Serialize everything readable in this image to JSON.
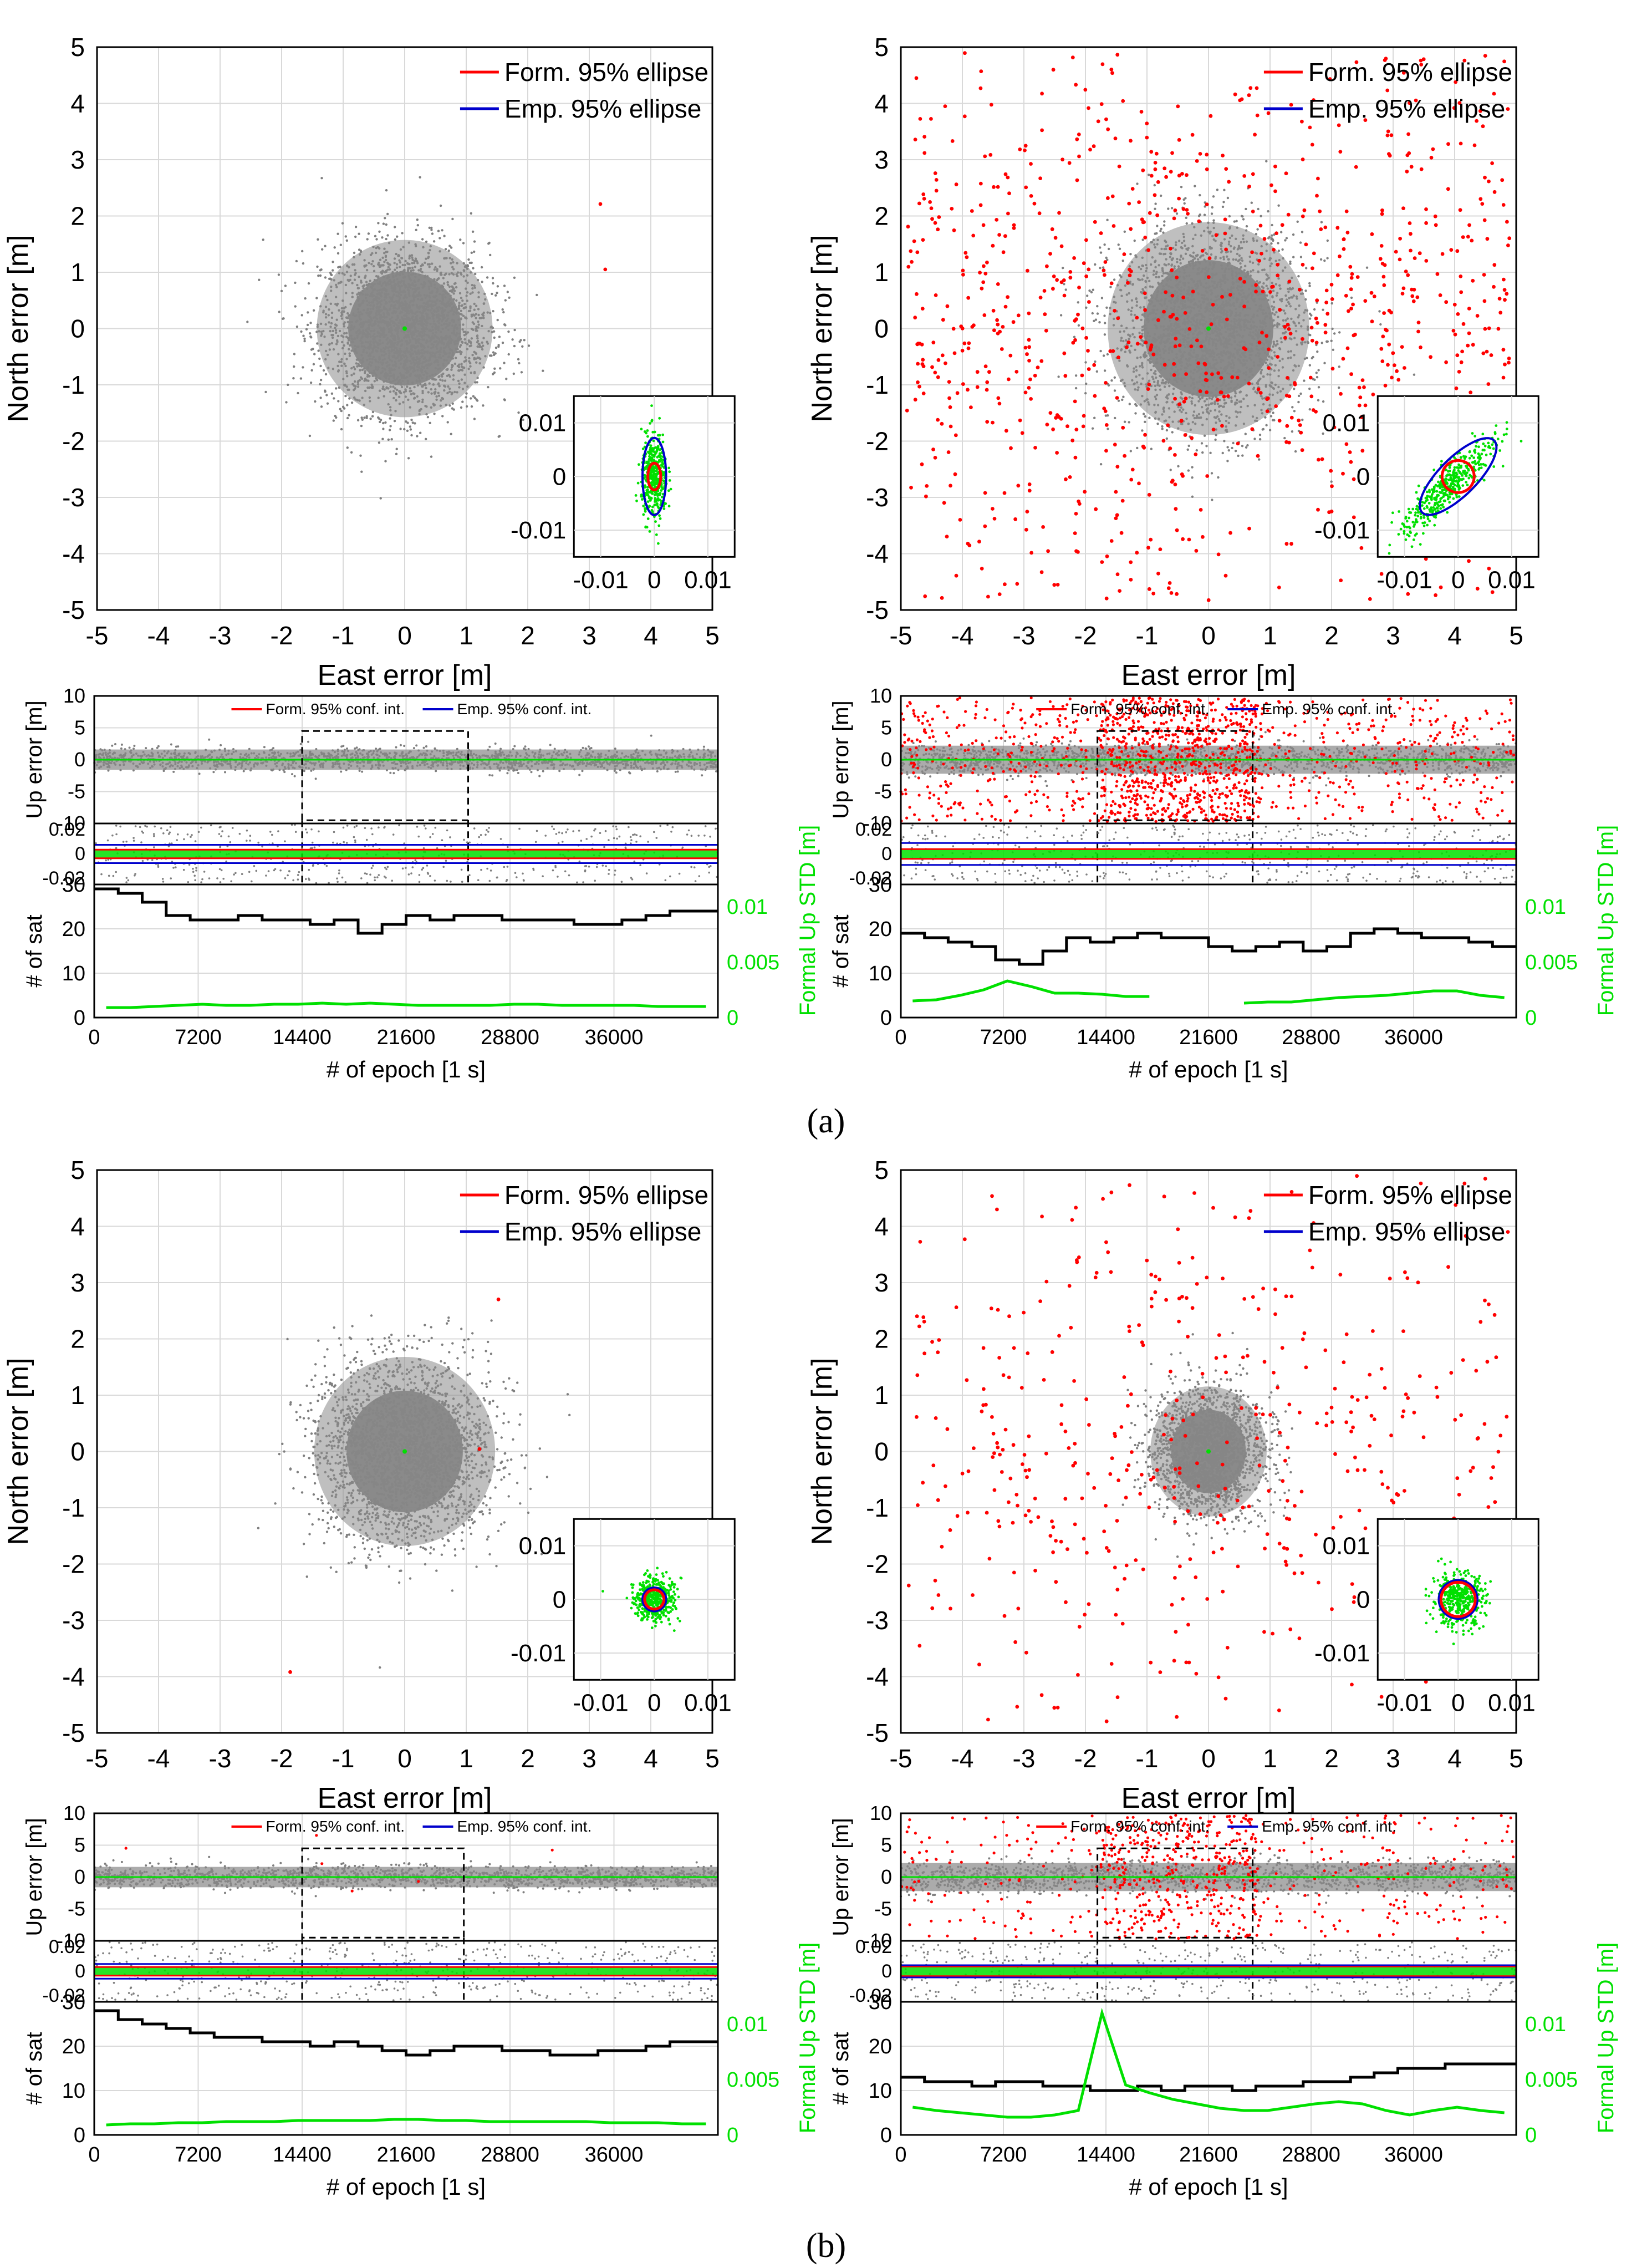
{
  "figure": {
    "caption_a": "(a)",
    "caption_b": "(b)",
    "colors": {
      "scatter_gray": "#7f7f7f",
      "formal": "#ff0000",
      "empirical": "#0000cc",
      "inset_points": "#00e000",
      "sat_line": "#000000",
      "std_line": "#00e000",
      "grid": "#d9d9d9"
    }
  },
  "chart_data": [
    {
      "id": "a_left_horizontal",
      "type": "scatter",
      "title": "",
      "xlabel": "East error [m]",
      "ylabel": "North error [m]",
      "xlim": [
        -5,
        5
      ],
      "ylim": [
        -5,
        5
      ],
      "ticks": [
        "-5",
        "-4",
        "-3",
        "-2",
        "-1",
        "0",
        "1",
        "2",
        "3",
        "4",
        "5"
      ],
      "legend": [
        "Form. 95% ellipse",
        "Emp. 95% ellipse"
      ],
      "cloud": {
        "std_e": 0.68,
        "std_n": 0.75,
        "count": 2600
      },
      "red_outliers": 2,
      "inset": {
        "lim": [
          -0.015,
          0.015
        ],
        "xticks": [
          "-0.01",
          "0",
          "0.01"
        ],
        "yticks": [
          "0.01",
          "0",
          "-0.01"
        ],
        "points_std": [
          0.0012,
          0.004
        ],
        "formal_ellipse": {
          "a": 0.0012,
          "b": 0.0025,
          "angle": 0
        },
        "empirical_ellipse": {
          "a": 0.0022,
          "b": 0.0072,
          "angle": 0
        }
      }
    },
    {
      "id": "a_right_horizontal",
      "type": "scatter",
      "title": "",
      "xlabel": "East error [m]",
      "ylabel": "North error [m]",
      "xlim": [
        -5,
        5
      ],
      "ylim": [
        -5,
        5
      ],
      "ticks": [
        "-5",
        "-4",
        "-3",
        "-2",
        "-1",
        "0",
        "1",
        "2",
        "3",
        "4",
        "5"
      ],
      "legend": [
        "Form. 95% ellipse",
        "Emp. 95% ellipse"
      ],
      "cloud": {
        "std_e": 0.78,
        "std_n": 0.9,
        "count": 2600
      },
      "red_outliers": 900,
      "inset": {
        "lim": [
          -0.015,
          0.015
        ],
        "xticks": [
          "-0.01",
          "0",
          "0.01"
        ],
        "yticks": [
          "0.01",
          "0",
          "-0.01"
        ],
        "points_std": [
          0.004,
          0.004
        ],
        "formal_ellipse": {
          "a": 0.003,
          "b": 0.003,
          "angle": 0
        },
        "empirical_ellipse": {
          "a": 0.0095,
          "b": 0.0035,
          "angle": 45
        }
      }
    },
    {
      "id": "a_left_vertical",
      "type": "line",
      "xlabel": "# of epoch [1 s]",
      "xlim": [
        0,
        43200
      ],
      "xticks": [
        "0",
        "7200",
        "14400",
        "21600",
        "28800",
        "36000"
      ],
      "up": {
        "ylabel": "Up error [m]",
        "ylim": [
          -10,
          10
        ],
        "ticks": [
          "10",
          "5",
          "0",
          "-5",
          "-10"
        ],
        "legend": [
          "Form. 95% conf. int.",
          "Emp. 95% conf. int."
        ],
        "band": 1.6,
        "red_outliers": 0,
        "box_epochs": [
          14400,
          25900
        ]
      },
      "mid": {
        "ylim": [
          -0.025,
          0.025
        ],
        "ticks": [
          "0.02",
          "0",
          "-0.02"
        ],
        "formal": 0.0035,
        "empirical": 0.0075
      },
      "sat": {
        "ylabel_left": "# of sat",
        "ylabel_right": "Formal Up STD [m]",
        "ylim": [
          0,
          30
        ],
        "ticks_left": [
          "30",
          "20",
          "10",
          "0"
        ],
        "ticks_right": [
          "0.01",
          "0.005",
          "0"
        ],
        "right_lim": [
          0,
          0.012
        ],
        "sat_series": [
          29,
          28,
          26,
          23,
          22,
          22,
          23,
          22,
          22,
          21,
          22,
          19,
          21,
          23,
          22,
          23,
          23,
          22,
          22,
          22,
          21,
          21,
          22,
          23,
          24,
          24
        ],
        "std_series": [
          0.0009,
          0.0009,
          0.001,
          0.0011,
          0.0012,
          0.0011,
          0.0011,
          0.0012,
          0.0012,
          0.0013,
          0.0012,
          0.0013,
          0.0012,
          0.0011,
          0.0011,
          0.0011,
          0.0011,
          0.0012,
          0.0012,
          0.0011,
          0.0011,
          0.0011,
          0.0011,
          0.001,
          0.001,
          0.001
        ]
      }
    },
    {
      "id": "a_right_vertical",
      "type": "line",
      "xlabel": "# of epoch [1 s]",
      "xlim": [
        0,
        43200
      ],
      "xticks": [
        "0",
        "7200",
        "14400",
        "21600",
        "28800",
        "36000"
      ],
      "up": {
        "ylabel": "Up error [m]",
        "ylim": [
          -10,
          10
        ],
        "ticks": [
          "10",
          "5",
          "0",
          "-5",
          "-10"
        ],
        "legend": [
          "Form. 95% conf. int.",
          "Emp. 95% conf. int."
        ],
        "band": 2.2,
        "red_outliers": 1400,
        "box_epochs": [
          13800,
          24700
        ]
      },
      "mid": {
        "ylim": [
          -0.025,
          0.025
        ],
        "ticks": [
          "0.02",
          "0",
          "-0.02"
        ],
        "formal": 0.004,
        "empirical": 0.009
      },
      "sat": {
        "ylabel_left": "# of sat",
        "ylabel_right": "Formal Up STD [m]",
        "ylim": [
          0,
          30
        ],
        "ticks_left": [
          "30",
          "20",
          "10",
          "0"
        ],
        "ticks_right": [
          "0.01",
          "0.005",
          "0"
        ],
        "right_lim": [
          0,
          0.012
        ],
        "sat_series": [
          19,
          18,
          17,
          16,
          13,
          12,
          15,
          18,
          17,
          18,
          19,
          18,
          18,
          16,
          15,
          16,
          17,
          15,
          16,
          19,
          20,
          19,
          18,
          18,
          17,
          16
        ],
        "std_series": [
          0.0015,
          0.0016,
          0.002,
          0.0025,
          0.0033,
          0.0028,
          0.0022,
          0.0022,
          0.0021,
          0.0019,
          0.0019,
          null,
          null,
          null,
          0.0013,
          0.0014,
          0.0014,
          0.0016,
          0.0018,
          0.0019,
          0.002,
          0.0022,
          0.0024,
          0.0024,
          0.002,
          0.0018
        ]
      }
    },
    {
      "id": "b_left_horizontal",
      "type": "scatter",
      "title": "",
      "xlabel": "East error [m]",
      "ylabel": "North error [m]",
      "xlim": [
        -5,
        5
      ],
      "ylim": [
        -5,
        5
      ],
      "ticks": [
        "-5",
        "-4",
        "-3",
        "-2",
        "-1",
        "0",
        "1",
        "2",
        "3",
        "4",
        "5"
      ],
      "legend": [
        "Form. 95% ellipse",
        "Emp. 95% ellipse"
      ],
      "cloud": {
        "std_e": 0.7,
        "std_n": 0.8,
        "count": 2600
      },
      "red_outliers": 3,
      "inset": {
        "lim": [
          -0.015,
          0.015
        ],
        "xticks": [
          "-0.01",
          "0",
          "0.01"
        ],
        "yticks": [
          "0.01",
          "0",
          "-0.01"
        ],
        "points_std": [
          0.002,
          0.002
        ],
        "formal_ellipse": {
          "a": 0.0018,
          "b": 0.0018,
          "angle": 0
        },
        "empirical_ellipse": {
          "a": 0.0022,
          "b": 0.0022,
          "angle": 0
        }
      }
    },
    {
      "id": "b_right_horizontal",
      "type": "scatter",
      "title": "",
      "xlabel": "East error [m]",
      "ylabel": "North error [m]",
      "xlim": [
        -5,
        5
      ],
      "ylim": [
        -5,
        5
      ],
      "ticks": [
        "-5",
        "-4",
        "-3",
        "-2",
        "-1",
        "0",
        "1",
        "2",
        "3",
        "4",
        "5"
      ],
      "legend": [
        "Form. 95% ellipse",
        "Emp. 95% ellipse"
      ],
      "cloud": {
        "std_e": 0.45,
        "std_n": 0.55,
        "count": 2000
      },
      "red_outliers": 450,
      "inset": {
        "lim": [
          -0.015,
          0.015
        ],
        "xticks": [
          "-0.01",
          "0",
          "0.01"
        ],
        "yticks": [
          "0.01",
          "0",
          "-0.01"
        ],
        "points_std": [
          0.0025,
          0.0025
        ],
        "formal_ellipse": {
          "a": 0.0032,
          "b": 0.0032,
          "angle": 0
        },
        "empirical_ellipse": {
          "a": 0.0036,
          "b": 0.0036,
          "angle": 0
        }
      }
    },
    {
      "id": "b_left_vertical",
      "type": "line",
      "xlabel": "# of epoch [1 s]",
      "xlim": [
        0,
        43200
      ],
      "xticks": [
        "0",
        "7200",
        "14400",
        "21600",
        "28800",
        "36000"
      ],
      "up": {
        "ylabel": "Up error [m]",
        "ylim": [
          -10,
          10
        ],
        "ticks": [
          "10",
          "5",
          "0",
          "-5",
          "-10"
        ],
        "legend": [
          "Form. 95% conf. int.",
          "Emp. 95% conf. int."
        ],
        "band": 1.6,
        "red_outliers": 6,
        "box_epochs": [
          14400,
          25600
        ]
      },
      "mid": {
        "ylim": [
          -0.025,
          0.025
        ],
        "ticks": [
          "0.02",
          "0",
          "-0.02"
        ],
        "formal": 0.0035,
        "empirical": 0.006
      },
      "sat": {
        "ylabel_left": "# of sat",
        "ylabel_right": "Formal Up STD [m]",
        "ylim": [
          0,
          30
        ],
        "ticks_left": [
          "30",
          "20",
          "10",
          "0"
        ],
        "ticks_right": [
          "0.01",
          "0.005",
          "0"
        ],
        "right_lim": [
          0,
          0.012
        ],
        "sat_series": [
          28,
          26,
          25,
          24,
          23,
          22,
          22,
          21,
          21,
          20,
          21,
          20,
          19,
          18,
          19,
          20,
          20,
          19,
          19,
          18,
          18,
          19,
          19,
          20,
          21,
          21
        ],
        "std_series": [
          0.0009,
          0.001,
          0.001,
          0.0011,
          0.0011,
          0.0012,
          0.0012,
          0.0012,
          0.0013,
          0.0013,
          0.0013,
          0.0013,
          0.0014,
          0.0014,
          0.0013,
          0.0013,
          0.0012,
          0.0012,
          0.0012,
          0.0012,
          0.0012,
          0.0011,
          0.0011,
          0.0011,
          0.001,
          0.001
        ]
      }
    },
    {
      "id": "b_right_vertical",
      "type": "line",
      "xlabel": "# of epoch [1 s]",
      "xlim": [
        0,
        43200
      ],
      "xticks": [
        "0",
        "7200",
        "14400",
        "21600",
        "28800",
        "36000"
      ],
      "up": {
        "ylabel": "Up error [m]",
        "ylim": [
          -10,
          10
        ],
        "ticks": [
          "10",
          "5",
          "0",
          "-5",
          "-10"
        ],
        "legend": [
          "Form. 95% conf. int.",
          "Emp. 95% conf. int."
        ],
        "band": 2.2,
        "red_outliers": 700,
        "box_epochs": [
          13800,
          24700
        ]
      },
      "mid": {
        "ylim": [
          -0.025,
          0.025
        ],
        "ticks": [
          "0.02",
          "0",
          "-0.02"
        ],
        "formal": 0.004,
        "empirical": 0.005
      },
      "sat": {
        "ylabel_left": "# of sat",
        "ylabel_right": "Formal Up STD [m]",
        "ylim": [
          0,
          30
        ],
        "ticks_left": [
          "30",
          "20",
          "10",
          "0"
        ],
        "ticks_right": [
          "0.01",
          "0.005",
          "0"
        ],
        "right_lim": [
          0,
          0.012
        ],
        "sat_series": [
          13,
          12,
          12,
          11,
          12,
          12,
          11,
          11,
          10,
          10,
          11,
          10,
          11,
          11,
          10,
          11,
          11,
          12,
          12,
          13,
          14,
          15,
          15,
          16,
          16,
          16
        ],
        "std_series": [
          0.0025,
          0.0022,
          0.002,
          0.0018,
          0.0016,
          0.0016,
          0.0018,
          0.0022,
          0.011,
          0.0045,
          0.0038,
          0.0032,
          0.0028,
          0.0024,
          0.0022,
          0.0022,
          0.0025,
          0.0028,
          0.003,
          0.0028,
          0.0022,
          0.0018,
          0.0022,
          0.0025,
          0.0022,
          0.002
        ]
      }
    }
  ]
}
